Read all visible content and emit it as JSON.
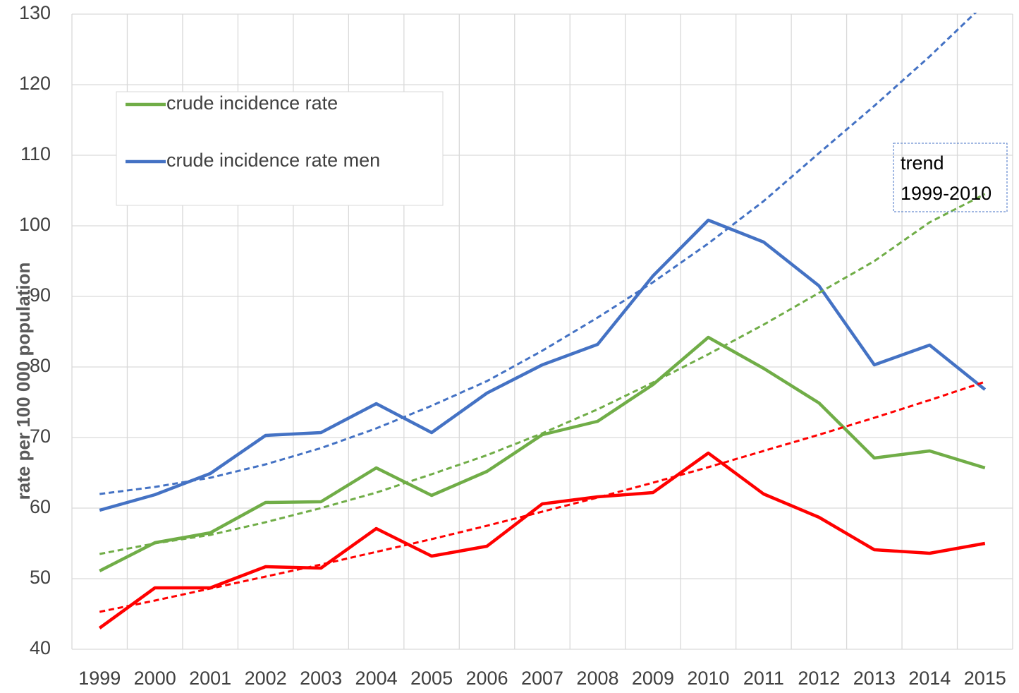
{
  "chart_data": {
    "type": "line",
    "y_label": "rate per 100 000 population",
    "categories": [
      "1999",
      "2000",
      "2001",
      "2002",
      "2003",
      "2004",
      "2005",
      "2006",
      "2007",
      "2008",
      "2009",
      "2010",
      "2011",
      "2012",
      "2013",
      "2014",
      "2015"
    ],
    "series": [
      {
        "name": "crude incidence rate",
        "color": "#70ad47",
        "values": [
          51.1,
          55.1,
          56.5,
          60.8,
          60.9,
          65.7,
          61.8,
          65.2,
          70.4,
          72.3,
          77.5,
          84.2,
          79.8,
          74.9,
          67.1,
          68.1,
          65.7
        ]
      },
      {
        "name": "crude incidence rate men",
        "color": "#4472c4",
        "values": [
          59.7,
          61.9,
          64.9,
          70.3,
          70.7,
          74.8,
          70.7,
          76.3,
          80.3,
          83.2,
          92.9,
          100.8,
          97.7,
          91.5,
          80.3,
          83.1,
          76.8
        ]
      },
      {
        "color": "#ff0000",
        "values": [
          43.0,
          48.7,
          48.7,
          51.7,
          51.5,
          57.1,
          53.2,
          54.6,
          60.6,
          61.6,
          62.2,
          67.8,
          62.0,
          58.7,
          54.1,
          53.6,
          55.0
        ]
      },
      {
        "color": "#70ad47",
        "dashed": true,
        "values": [
          53.5,
          55.0,
          56.2,
          58.0,
          60.0,
          62.2,
          64.8,
          67.5,
          70.6,
          74.0,
          77.8,
          81.8,
          86.0,
          90.5,
          95.0,
          100.5,
          104.5
        ]
      },
      {
        "color": "#4472c4",
        "dashed": true,
        "values": [
          62.0,
          63.0,
          64.3,
          66.2,
          68.5,
          71.3,
          74.5,
          78.0,
          82.3,
          87.0,
          92.0,
          97.5,
          103.5,
          110.3,
          117.0,
          124.0,
          131.5
        ]
      },
      {
        "color": "#ff0000",
        "dashed": true,
        "values": [
          45.3,
          46.9,
          48.6,
          50.3,
          52.0,
          53.8,
          55.6,
          57.5,
          59.5,
          61.5,
          63.6,
          65.8,
          68.1,
          70.4,
          72.8,
          75.3,
          77.9
        ]
      }
    ],
    "annotation": [
      "trend",
      "1999-2010"
    ],
    "ylim": [
      40,
      130
    ],
    "yticks": [
      40,
      50,
      60,
      70,
      80,
      90,
      100,
      110,
      120,
      130
    ],
    "grid": true,
    "legend": "upper left"
  }
}
